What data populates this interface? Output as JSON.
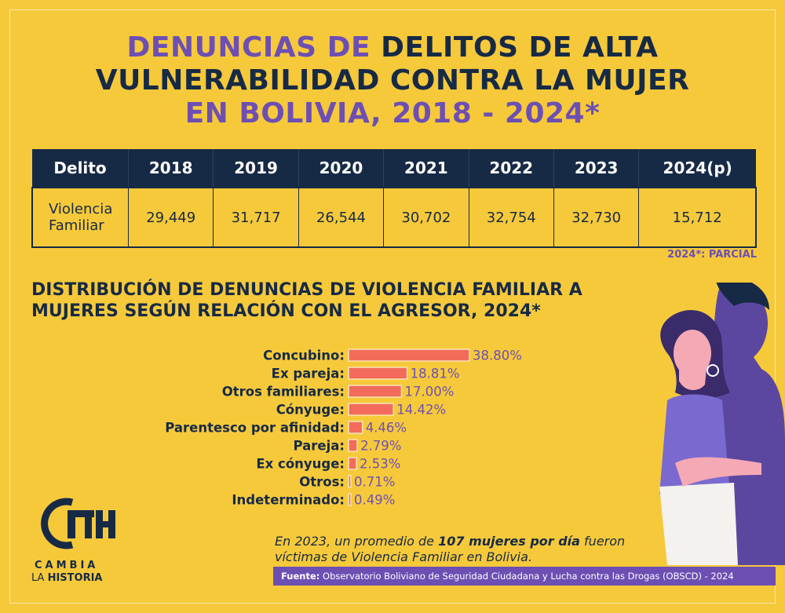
{
  "title": {
    "line1_purple": "DENUNCIAS DE",
    "line1_dark": " DELITOS DE ALTA",
    "line2": "VULNERABILIDAD CONTRA LA MUJER",
    "line3": "EN BOLIVIA, 2018 - 2024*"
  },
  "table": {
    "headers": [
      "Delito",
      "2018",
      "2019",
      "2020",
      "2021",
      "2022",
      "2023",
      "2024(p)"
    ],
    "row_label_1": "Violencia",
    "row_label_2": "Familiar",
    "values": [
      "29,449",
      "31,717",
      "26,544",
      "30,702",
      "32,754",
      "32,730",
      "15,712"
    ]
  },
  "note": "2024*: PARCIAL",
  "subtitle": {
    "line1": "DISTRIBUCIÓN DE DENUNCIAS DE VIOLENCIA FAMILIAR A",
    "line2": "MUJERES SEGÚN RELACIÓN CON EL AGRESOR, 2024*"
  },
  "chart_data": {
    "type": "bar",
    "orientation": "horizontal",
    "categories": [
      "Concubino:",
      "Ex pareja:",
      "Otros familiares:",
      "Cónyuge:",
      "Parentesco por afinidad:",
      "Pareja:",
      "Ex cónyuge:",
      "Otros:",
      "Indeterminado:"
    ],
    "values": [
      38.8,
      18.81,
      17.0,
      14.42,
      4.46,
      2.79,
      2.53,
      0.71,
      0.49
    ],
    "data_labels": [
      "38.80%",
      "18.81%",
      "17.00%",
      "14.42%",
      "4.46%",
      "2.79%",
      "2.53%",
      "0.71%",
      "0.49%"
    ],
    "title": "",
    "xlabel": "",
    "ylabel": "",
    "colors": {
      "bar": "#f26b5b",
      "label": "#6d4fb3"
    }
  },
  "stat": {
    "pre": "En 2023, un promedio de ",
    "bold1": "107 mujeres por día",
    "mid": " fueron",
    "line2": "víctimas de Violencia Familiar en Bolivia."
  },
  "source": {
    "label": "Fuente:",
    "text": " Observatorio Boliviano de Seguridad Ciudadana y Lucha contra las Drogas (OBSCD) - 2024"
  },
  "logo": {
    "line1": "CAMBIA",
    "line2_pre": "LA ",
    "line2_bold": "HISTORIA"
  }
}
